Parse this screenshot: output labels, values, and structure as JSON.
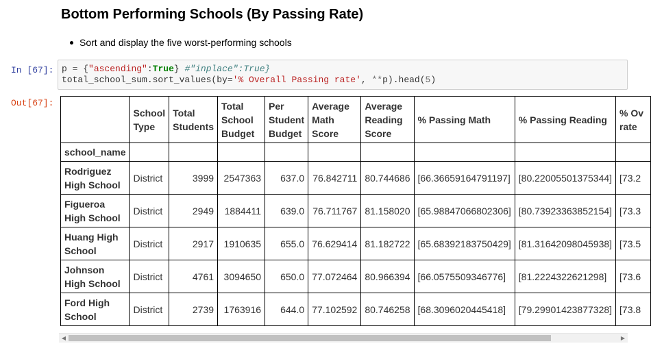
{
  "markdown": {
    "heading": "Bottom Performing Schools (By Passing Rate)",
    "bullet": "Sort and display the five worst-performing schools"
  },
  "cell": {
    "in_prompt": "In [67]:",
    "out_prompt": "Out[67]:",
    "code_line1_tokens": [
      {
        "t": "p ",
        "c": ""
      },
      {
        "t": "=",
        "c": "op"
      },
      {
        "t": " {",
        "c": ""
      },
      {
        "t": "\"ascending\"",
        "c": "str"
      },
      {
        "t": ":",
        "c": ""
      },
      {
        "t": "True",
        "c": "kw"
      },
      {
        "t": "} ",
        "c": ""
      },
      {
        "t": "#\"inplace\":True}",
        "c": "cm"
      }
    ],
    "code_line2_tokens": [
      {
        "t": "total_school_sum.sort_values(by",
        "c": ""
      },
      {
        "t": "=",
        "c": "op"
      },
      {
        "t": "'% Overall Passing rate'",
        "c": "str"
      },
      {
        "t": ", ",
        "c": ""
      },
      {
        "t": "**",
        "c": "op"
      },
      {
        "t": "p).head(",
        "c": ""
      },
      {
        "t": "5",
        "c": "op"
      },
      {
        "t": ")",
        "c": ""
      }
    ]
  },
  "table": {
    "columns": [
      "School Type",
      "Total Students",
      "Total School Budget",
      "Per Student Budget",
      "Average Math Score",
      "Average Reading Score",
      "% Passing Math",
      "% Passing Reading",
      "% Ov rate"
    ],
    "index_name": "school_name",
    "rows": [
      {
        "index": "Rodriguez High School",
        "cells": [
          "District",
          "3999",
          "2547363",
          "637.0",
          "76.842711",
          "80.744686",
          "[66.36659164791197]",
          "[80.22005501375344]",
          "[73.2"
        ]
      },
      {
        "index": "Figueroa High School",
        "cells": [
          "District",
          "2949",
          "1884411",
          "639.0",
          "76.711767",
          "81.158020",
          "[65.98847066802306]",
          "[80.73923363852154]",
          "[73.3"
        ]
      },
      {
        "index": "Huang High School",
        "cells": [
          "District",
          "2917",
          "1910635",
          "655.0",
          "76.629414",
          "81.182722",
          "[65.68392183750429]",
          "[81.31642098045938]",
          "[73.5"
        ]
      },
      {
        "index": "Johnson High School",
        "cells": [
          "District",
          "4761",
          "3094650",
          "650.0",
          "77.072464",
          "80.966394",
          "[66.0575509346776]",
          "[81.2224322621298]",
          "[73.6"
        ]
      },
      {
        "index": "Ford High School",
        "cells": [
          "District",
          "2739",
          "1763916",
          "644.0",
          "77.102592",
          "80.746258",
          "[68.3096020445418]",
          "[79.29901423877328]",
          "[73.8"
        ]
      }
    ]
  },
  "scrollbar": {
    "left_arrow": "◀",
    "right_arrow": "▶"
  }
}
